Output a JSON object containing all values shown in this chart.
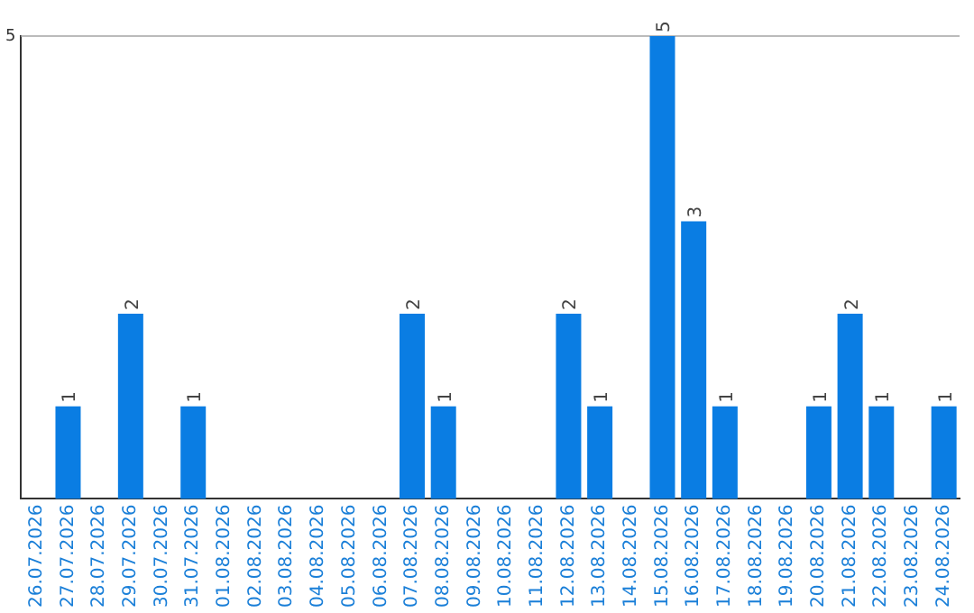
{
  "chart_data": {
    "type": "bar",
    "categories": [
      "26.07.2026",
      "27.07.2026",
      "28.07.2026",
      "29.07.2026",
      "30.07.2026",
      "31.07.2026",
      "01.08.2026",
      "02.08.2026",
      "03.08.2026",
      "04.08.2026",
      "05.08.2026",
      "06.08.2026",
      "07.08.2026",
      "08.08.2026",
      "09.08.2026",
      "10.08.2026",
      "11.08.2026",
      "12.08.2026",
      "13.08.2026",
      "14.08.2026",
      "15.08.2026",
      "16.08.2026",
      "17.08.2026",
      "18.08.2026",
      "19.08.2026",
      "20.08.2026",
      "21.08.2026",
      "22.08.2026",
      "23.08.2026",
      "24.08.2026"
    ],
    "values": [
      0,
      1,
      0,
      2,
      0,
      1,
      0,
      0,
      0,
      0,
      0,
      0,
      2,
      1,
      0,
      0,
      0,
      2,
      1,
      0,
      5,
      3,
      1,
      0,
      0,
      1,
      2,
      1,
      0,
      1
    ],
    "value_labels": [
      null,
      "1",
      null,
      "2",
      null,
      "1",
      null,
      null,
      null,
      null,
      null,
      null,
      "2",
      "1",
      null,
      null,
      null,
      "2",
      "1",
      null,
      "5",
      "3",
      "1",
      null,
      null,
      "1",
      "2",
      "1",
      null,
      "1"
    ],
    "color": "#0a7de3",
    "ylim": [
      0,
      5
    ],
    "yticks": [
      5
    ],
    "ref_lines": [
      {
        "axis": "y",
        "value": 5,
        "color": "#bbbbbb"
      }
    ],
    "grid": false,
    "legend": false
  }
}
